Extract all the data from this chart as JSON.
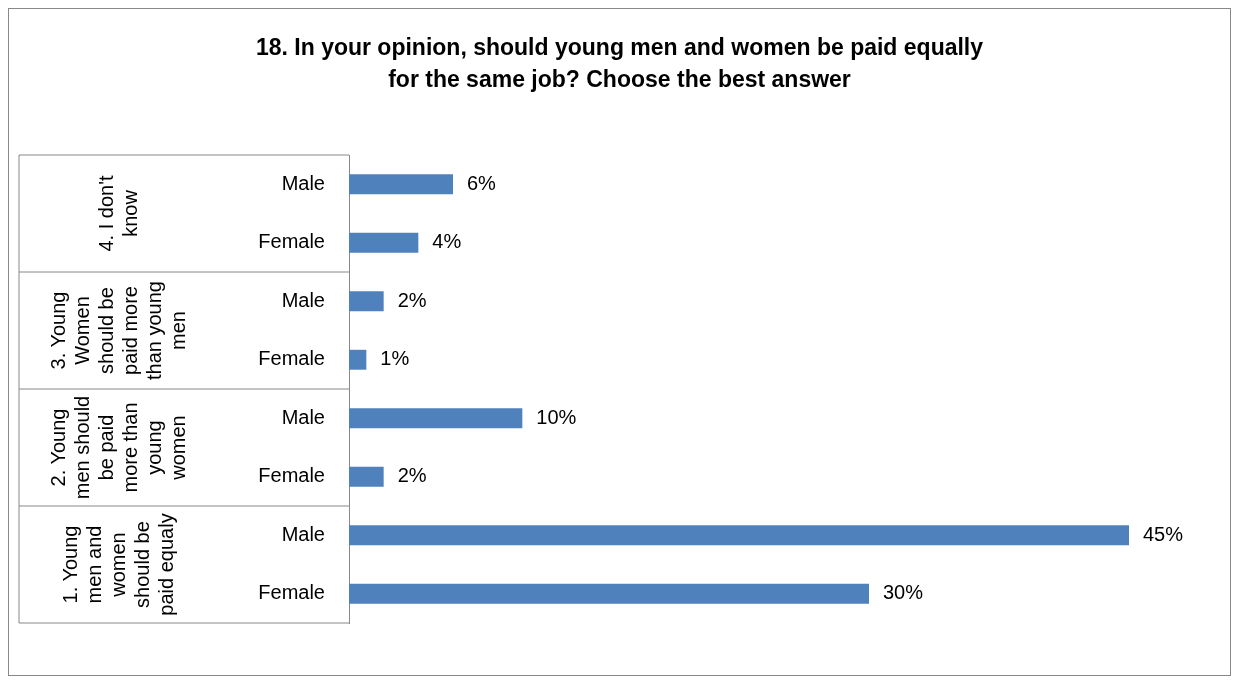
{
  "chart_data": {
    "type": "bar",
    "orientation": "horizontal",
    "title": "18. In your opinion, should young men and women be paid equally for the same job? Choose the best answer",
    "categories": [
      "Male",
      "Female",
      "Male",
      "Female",
      "Male",
      "Female",
      "Male",
      "Female"
    ],
    "values": [
      6,
      4,
      2,
      1,
      10,
      2,
      45,
      30
    ],
    "value_labels": [
      "6%",
      "4%",
      "2%",
      "1%",
      "10%",
      "2%",
      "45%",
      "30%"
    ],
    "color": "#4f81bd",
    "annotations": [
      "4. I don't know",
      "3. Young Women should be paid more than young men",
      "2. Young men should be paid more than young women",
      "1. Young men and women should be paid equaly"
    ],
    "grid": false,
    "legend": false
  }
}
